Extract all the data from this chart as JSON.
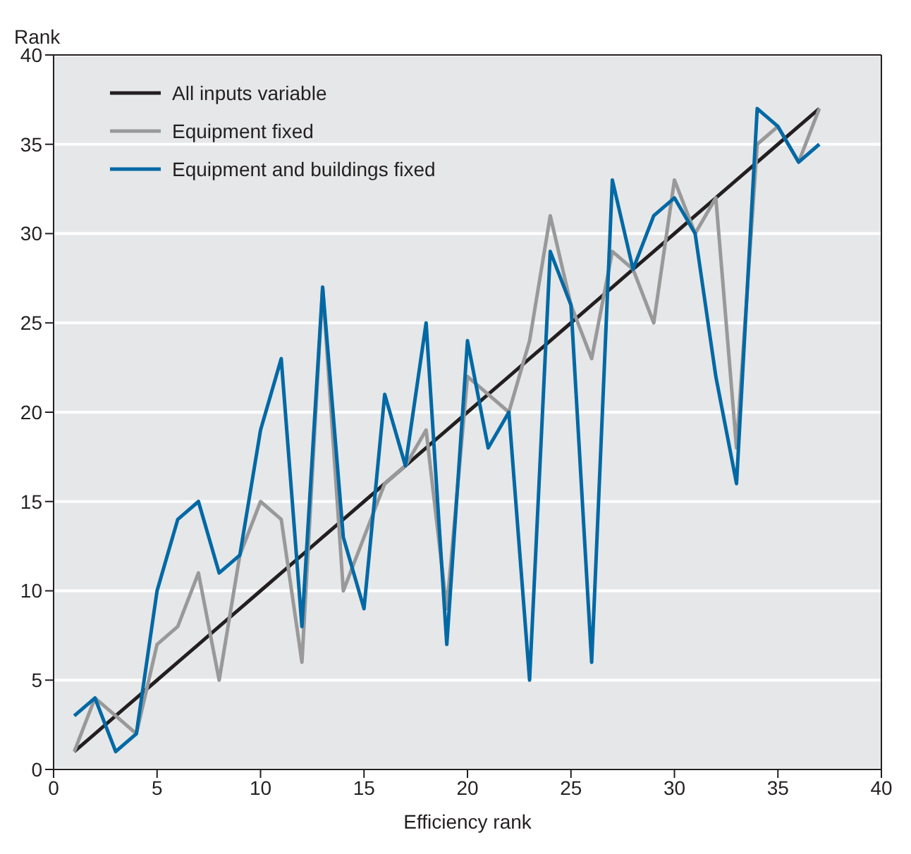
{
  "chart_data": {
    "type": "line",
    "xlabel": "Efficiency rank",
    "ylabel": "Rank",
    "x": [
      1,
      2,
      3,
      4,
      5,
      6,
      7,
      8,
      9,
      10,
      11,
      12,
      13,
      14,
      15,
      16,
      17,
      18,
      19,
      20,
      21,
      22,
      23,
      24,
      25,
      26,
      27,
      28,
      29,
      30,
      31,
      32,
      33,
      34,
      35,
      36,
      37
    ],
    "series": [
      {
        "name": "All inputs variable",
        "color": "#231f20",
        "values": [
          1,
          2,
          3,
          4,
          5,
          6,
          7,
          8,
          9,
          10,
          11,
          12,
          13,
          14,
          15,
          16,
          17,
          18,
          19,
          20,
          21,
          22,
          23,
          24,
          25,
          26,
          27,
          28,
          29,
          30,
          31,
          32,
          33,
          34,
          35,
          36,
          37
        ]
      },
      {
        "name": "Equipment fixed",
        "color": "#999999",
        "values": [
          1,
          4,
          3,
          2,
          7,
          8,
          11,
          5,
          12,
          15,
          14,
          6,
          27,
          10,
          13,
          16,
          17,
          19,
          9,
          22,
          21,
          20,
          24,
          31,
          26,
          23,
          29,
          28,
          25,
          33,
          30,
          32,
          18,
          35,
          36,
          34,
          37
        ]
      },
      {
        "name": "Equipment and buildings fixed",
        "color": "#0069a5",
        "values": [
          3,
          4,
          1,
          2,
          10,
          14,
          15,
          11,
          12,
          19,
          23,
          8,
          27,
          13,
          9,
          21,
          17,
          25,
          7,
          24,
          18,
          20,
          5,
          29,
          26,
          6,
          33,
          28,
          31,
          32,
          30,
          22,
          16,
          37,
          36,
          34,
          35
        ]
      }
    ],
    "xlim": [
      0,
      40
    ],
    "xticks": [
      0,
      5,
      10,
      15,
      20,
      25,
      30,
      35,
      40
    ],
    "ylim": [
      0,
      40
    ],
    "yticks": [
      0,
      5,
      10,
      15,
      20,
      25,
      30,
      35,
      40
    ],
    "grid": "y",
    "legend": "top left",
    "marker": "none",
    "line_style": "solid"
  }
}
